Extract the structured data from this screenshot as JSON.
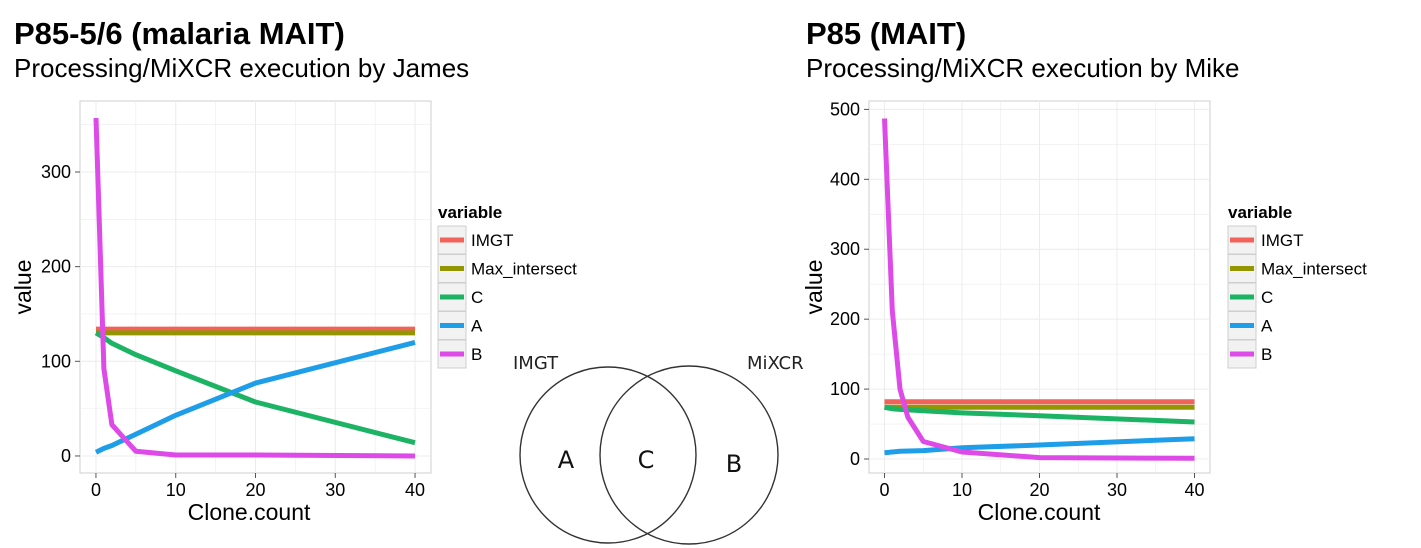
{
  "colors": {
    "IMGT": "#F0625A",
    "Max_intersect": "#939600",
    "C": "#1DB365",
    "A": "#1E9EE8",
    "B": "#DD4AE8",
    "panel_border": "#cfcfcf",
    "grid": "#ececec"
  },
  "chart_data": [
    {
      "type": "line",
      "title": "P85-5/6 (malaria MAIT)",
      "subtitle": "Processing/MiXCR execution by James",
      "xlabel": "Clone.count",
      "ylabel": "value",
      "xlim": [
        -2,
        42
      ],
      "ylim": [
        -18,
        375
      ],
      "x_ticks": [
        0,
        10,
        20,
        30,
        40
      ],
      "y_ticks": [
        0,
        100,
        200,
        300
      ],
      "grid": true,
      "legend": {
        "title": "variable",
        "position": "right"
      },
      "series": [
        {
          "name": "IMGT",
          "x": [
            0,
            40
          ],
          "y": [
            134,
            134
          ]
        },
        {
          "name": "Max_intersect",
          "x": [
            0,
            40
          ],
          "y": [
            130,
            130
          ]
        },
        {
          "name": "C",
          "x": [
            0,
            1,
            2,
            5,
            10,
            20,
            40
          ],
          "y": [
            130,
            125,
            119,
            107,
            90,
            57,
            14
          ]
        },
        {
          "name": "A",
          "x": [
            0,
            1,
            2,
            5,
            10,
            20,
            40
          ],
          "y": [
            4,
            8,
            11,
            23,
            43,
            77,
            120
          ]
        },
        {
          "name": "B",
          "x": [
            0,
            1,
            2,
            5,
            10,
            20,
            40
          ],
          "y": [
            357,
            92,
            33,
            5,
            1,
            1,
            0
          ]
        }
      ]
    },
    {
      "type": "line",
      "title": "P85 (MAIT)",
      "subtitle": "Processing/MiXCR execution by Mike",
      "xlabel": "Clone.count",
      "ylabel": "value",
      "xlim": [
        -2,
        42
      ],
      "ylim": [
        -20,
        512
      ],
      "x_ticks": [
        0,
        10,
        20,
        30,
        40
      ],
      "y_ticks": [
        0,
        100,
        200,
        300,
        400,
        500
      ],
      "grid": true,
      "legend": {
        "title": "variable",
        "position": "right"
      },
      "series": [
        {
          "name": "IMGT",
          "x": [
            0,
            40
          ],
          "y": [
            82,
            82
          ]
        },
        {
          "name": "Max_intersect",
          "x": [
            0,
            40
          ],
          "y": [
            74,
            74
          ]
        },
        {
          "name": "C",
          "x": [
            0,
            1,
            2,
            5,
            10,
            20,
            40
          ],
          "y": [
            74,
            72,
            71,
            69,
            66,
            62,
            53
          ]
        },
        {
          "name": "A",
          "x": [
            0,
            1,
            2,
            5,
            10,
            20,
            40
          ],
          "y": [
            9,
            10,
            11,
            12,
            16,
            20,
            29
          ]
        },
        {
          "name": "B",
          "x": [
            0,
            1,
            2,
            3,
            5,
            10,
            20,
            40
          ],
          "y": [
            487,
            212,
            100,
            60,
            25,
            10,
            2,
            1
          ]
        }
      ]
    }
  ],
  "venn": {
    "left_label": "IMGT",
    "right_label": "MiXCR",
    "regions": [
      "A",
      "C",
      "B"
    ]
  }
}
